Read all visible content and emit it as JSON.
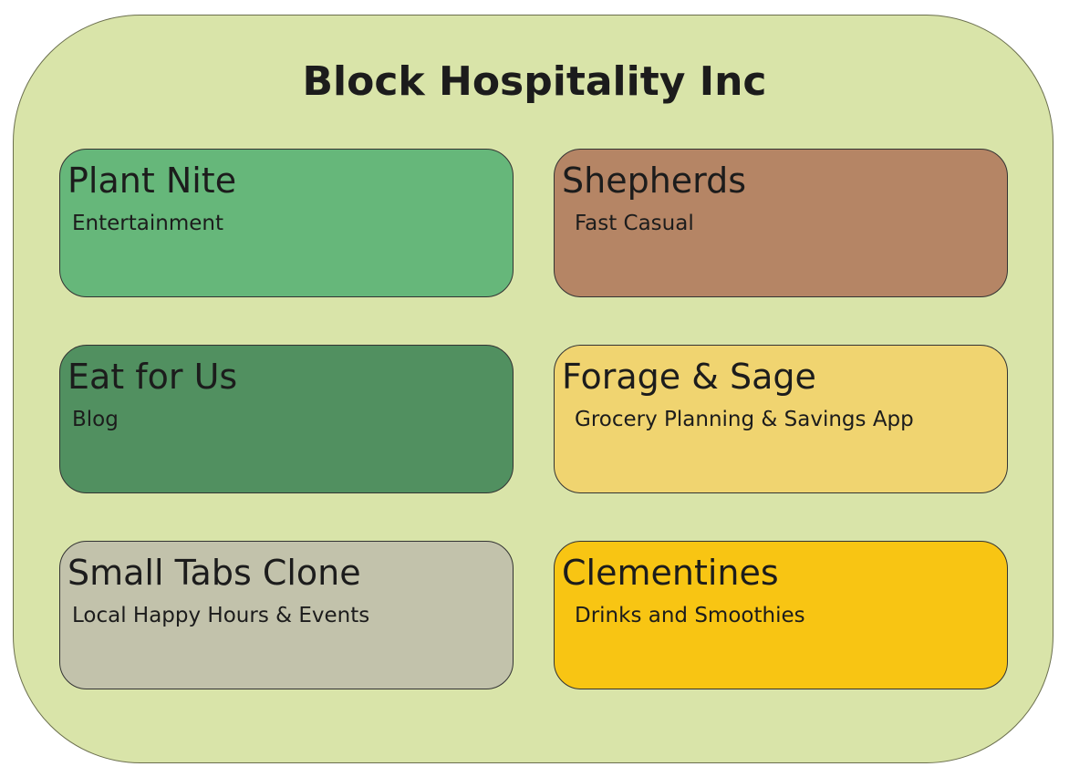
{
  "organization": {
    "title": "Block Hospitality Inc",
    "background_color": "#d9e4a9"
  },
  "ventures": [
    {
      "name": "Plant Nite",
      "category": "Entertainment",
      "color": "#66b77a"
    },
    {
      "name": "Shepherds",
      "category": "Fast Casual",
      "color": "#b58565"
    },
    {
      "name": "Eat for Us",
      "category": "Blog",
      "color": "#519060"
    },
    {
      "name": "Forage & Sage",
      "category": "Grocery Planning & Savings App",
      "color": "#f0d470"
    },
    {
      "name": "Small Tabs Clone",
      "category": "Local Happy Hours & Events",
      "color": "#c2c2ab"
    },
    {
      "name": "Clementines",
      "category": "Drinks and Smoothies",
      "color": "#f8c513"
    }
  ]
}
